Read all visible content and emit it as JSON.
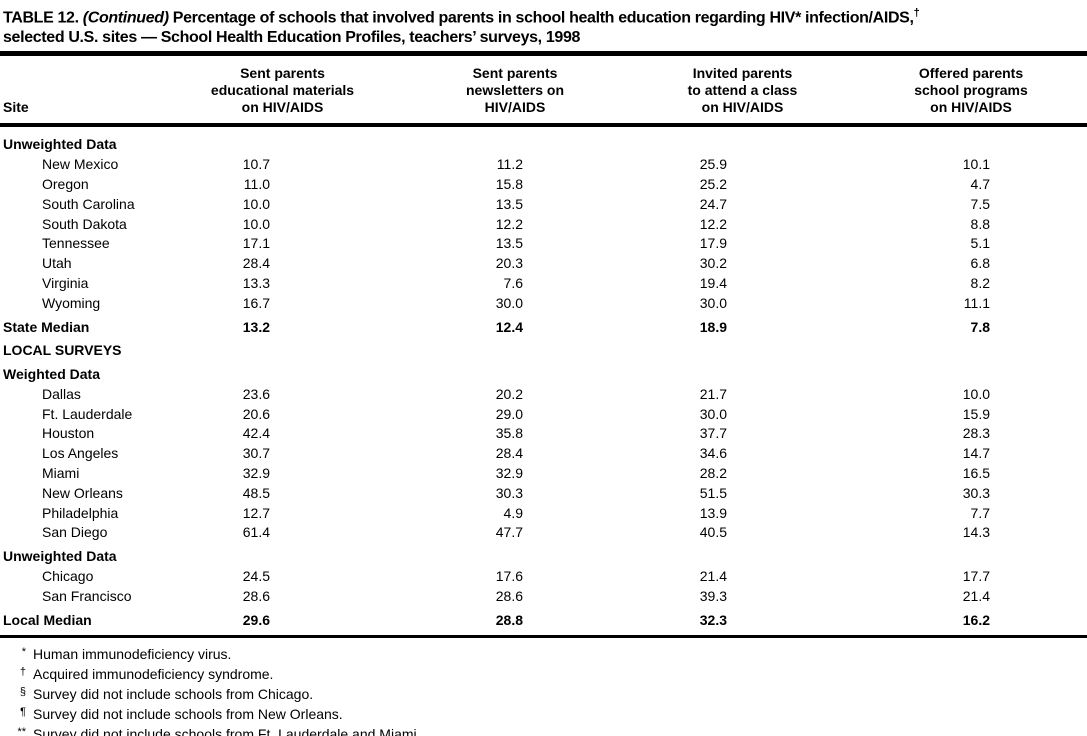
{
  "colors": {
    "text": "#000000",
    "background": "#ffffff",
    "rule": "#000000"
  },
  "title": {
    "label": "TABLE 12. ",
    "continued": "(Continued)",
    "segment1": " Percentage of schools that involved parents in school health education regarding HIV* infection/AIDS,",
    "dagger": "†",
    "segment2": "selected U.S. sites — School Health Education Profiles, teachers’ surveys, 1998"
  },
  "table": {
    "columns": [
      "Site",
      "Sent parents\neducational materials\non HIV/AIDS",
      "Sent parents\nnewsletters on\nHIV/AIDS",
      "Invited parents\nto attend a class\non HIV/AIDS",
      "Offered parents\nschool programs\non HIV/AIDS"
    ],
    "rows": [
      {
        "type": "section",
        "label": "Unweighted Data"
      },
      {
        "type": "data",
        "label": "New Mexico",
        "values": [
          "10.7",
          "11.2",
          "25.9",
          "10.1"
        ]
      },
      {
        "type": "data",
        "label": "Oregon",
        "values": [
          "11.0",
          "15.8",
          "25.2",
          "4.7"
        ]
      },
      {
        "type": "data",
        "label": "South Carolina",
        "values": [
          "10.0",
          "13.5",
          "24.7",
          "7.5"
        ]
      },
      {
        "type": "data",
        "label": "South Dakota",
        "values": [
          "10.0",
          "12.2",
          "12.2",
          "8.8"
        ]
      },
      {
        "type": "data",
        "label": "Tennessee",
        "values": [
          "17.1",
          "13.5",
          "17.9",
          "5.1"
        ]
      },
      {
        "type": "data",
        "label": "Utah",
        "values": [
          "28.4",
          "20.3",
          "30.2",
          "6.8"
        ]
      },
      {
        "type": "data",
        "label": "Virginia",
        "values": [
          "13.3",
          "7.6",
          "19.4",
          "8.2"
        ]
      },
      {
        "type": "data",
        "label": "Wyoming",
        "values": [
          "16.7",
          "30.0",
          "30.0",
          "11.1"
        ]
      },
      {
        "type": "median",
        "label": "State Median",
        "values": [
          "13.2",
          "12.4",
          "18.9",
          "7.8"
        ],
        "gap": true
      },
      {
        "type": "section",
        "label": "LOCAL SURVEYS",
        "gap": true
      },
      {
        "type": "section",
        "label": "Weighted Data",
        "gap": true
      },
      {
        "type": "data",
        "label": "Dallas",
        "values": [
          "23.6",
          "20.2",
          "21.7",
          "10.0"
        ]
      },
      {
        "type": "data",
        "label": "Ft. Lauderdale",
        "values": [
          "20.6",
          "29.0",
          "30.0",
          "15.9"
        ]
      },
      {
        "type": "data",
        "label": "Houston",
        "values": [
          "42.4",
          "35.8",
          "37.7",
          "28.3"
        ]
      },
      {
        "type": "data",
        "label": "Los Angeles",
        "values": [
          "30.7",
          "28.4",
          "34.6",
          "14.7"
        ]
      },
      {
        "type": "data",
        "label": "Miami",
        "values": [
          "32.9",
          "32.9",
          "28.2",
          "16.5"
        ]
      },
      {
        "type": "data",
        "label": "New Orleans",
        "values": [
          "48.5",
          "30.3",
          "51.5",
          "30.3"
        ]
      },
      {
        "type": "data",
        "label": "Philadelphia",
        "values": [
          "12.7",
          "4.9",
          "13.9",
          "7.7"
        ]
      },
      {
        "type": "data",
        "label": "San Diego",
        "values": [
          "61.4",
          "47.7",
          "40.5",
          "14.3"
        ]
      },
      {
        "type": "section",
        "label": "Unweighted Data",
        "gap": true
      },
      {
        "type": "data",
        "label": "Chicago",
        "values": [
          "24.5",
          "17.6",
          "21.4",
          "17.7"
        ]
      },
      {
        "type": "data",
        "label": "San Francisco",
        "values": [
          "28.6",
          "28.6",
          "39.3",
          "21.4"
        ]
      },
      {
        "type": "median",
        "label": "Local Median",
        "values": [
          "29.6",
          "28.8",
          "32.3",
          "16.2"
        ],
        "gap": true
      }
    ]
  },
  "footnotes": [
    {
      "marker": "*",
      "text": "Human immunodeficiency virus."
    },
    {
      "marker": "†",
      "text": "Acquired immunodeficiency syndrome."
    },
    {
      "marker": "§",
      "text": "Survey did not include schools from Chicago."
    },
    {
      "marker": "¶",
      "text": "Survey did not include schools from New Orleans."
    },
    {
      "marker": "**",
      "text": "Survey did not include schools from Ft. Lauderdale and Miami."
    }
  ]
}
